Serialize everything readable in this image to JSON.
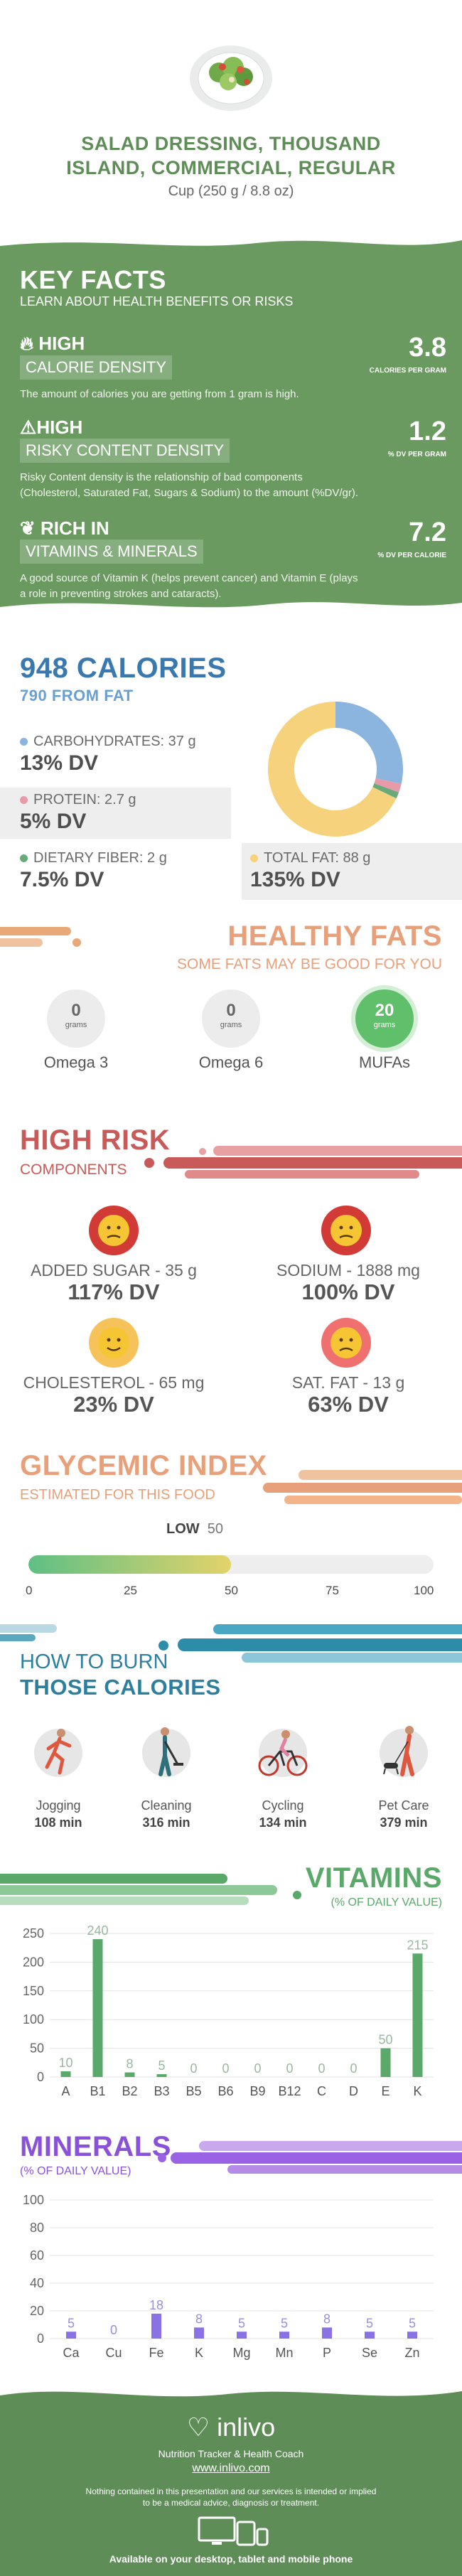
{
  "header": {
    "title_line1": "SALAD DRESSING, THOUSAND",
    "title_line2": "ISLAND, COMMERCIAL, REGULAR",
    "serving": "Cup (250 g / 8.8 oz)"
  },
  "key_facts": {
    "title": "KEY FACTS",
    "subtitle": "LEARN ABOUT HEALTH BENEFITS OR RISKS",
    "items": [
      {
        "level": "HIGH",
        "name": "CALORIE DENSITY",
        "value": "3.8",
        "unit": "CALORIES PER GRAM",
        "text": "The amount of calories you are getting from 1 gram is high."
      },
      {
        "level": "HIGH",
        "name": "RISKY CONTENT DENSITY",
        "value": "1.2",
        "unit": "% DV PER GRAM",
        "text1": "Risky Content density is the relationship of bad components",
        "text2": "(Cholesterol, Saturated Fat, Sugars & Sodium) to the amount (%DV/gr)."
      },
      {
        "level": "RICH  IN",
        "name": "VITAMINS & MINERALS",
        "value": "7.2",
        "unit": "% DV PER CALORIE",
        "text1": "A good source of Vitamin K (helps prevent cancer) and Vitamin E (plays",
        "text2": "a role in preventing strokes and cataracts)."
      }
    ]
  },
  "calories": {
    "title": "948 CALORIES",
    "subtitle": "790 FROM FAT",
    "carbs_label": "CARBOHYDRATES: 37 g",
    "carbs_dv": "13% DV",
    "protein_label": "PROTEIN: 2.7 g",
    "protein_dv": "5% DV",
    "fiber_label": "DIETARY FIBER: 2 g",
    "fiber_dv": "7.5% DV",
    "fat_label": "TOTAL FAT: 88 g",
    "fat_dv": "135% DV",
    "colors": {
      "carbs": "#8bb4df",
      "protein": "#e99aa8",
      "fiber": "#6aaa7a",
      "fat": "#f7d27c"
    }
  },
  "chart_data": [
    {
      "type": "pie",
      "categories": [
        "Carbohydrates",
        "Protein",
        "Dietary Fiber",
        "Total Fat"
      ],
      "values": [
        37,
        2.7,
        2,
        88
      ]
    },
    {
      "type": "bar",
      "categories": [
        "A",
        "B1",
        "B2",
        "B3",
        "B5",
        "B6",
        "B9",
        "B12",
        "C",
        "D",
        "E",
        "K"
      ],
      "values": [
        10,
        240,
        8,
        5,
        0,
        0,
        0,
        0,
        0,
        0,
        50,
        215
      ],
      "ylim": [
        0,
        250
      ],
      "yticks": [
        "0",
        "50",
        "100",
        "150",
        "200",
        "250"
      ]
    },
    {
      "type": "bar",
      "categories": [
        "Ca",
        "Cu",
        "Fe",
        "K",
        "Mg",
        "Mn",
        "P",
        "Se",
        "Zn"
      ],
      "values": [
        5,
        0,
        18,
        8,
        5,
        5,
        8,
        5,
        5
      ],
      "ylim": [
        0,
        100
      ],
      "yticks": [
        "0",
        "20",
        "40",
        "60",
        "80",
        "100"
      ]
    }
  ],
  "healthy_fats": {
    "title": "HEALTHY FATS",
    "subtitle": "SOME FATS MAY BE GOOD FOR YOU",
    "items": [
      {
        "value": "0",
        "unit": "grams",
        "name": "Omega 3"
      },
      {
        "value": "0",
        "unit": "grams",
        "name": "Omega 6"
      },
      {
        "value": "20",
        "unit": "grams",
        "name": "MUFAs"
      }
    ]
  },
  "high_risk": {
    "title": "HIGH RISK",
    "subtitle": "COMPONENTS",
    "items": [
      {
        "label": "ADDED SUGAR - 35 g",
        "dv": "117% DV"
      },
      {
        "label": "SODIUM - 1888 mg",
        "dv": "100% DV"
      },
      {
        "label": "CHOLESTEROL - 65 mg",
        "dv": "23% DV"
      },
      {
        "label": "SAT. FAT - 13 g",
        "dv": "63% DV"
      }
    ]
  },
  "glycemic": {
    "title": "GLYCEMIC INDEX",
    "subtitle": "ESTIMATED FOR THIS FOOD",
    "level": "LOW",
    "value": "50",
    "fraction": 0.5,
    "ticks": [
      "0",
      "25",
      "50",
      "75",
      "100"
    ]
  },
  "burn": {
    "title1": "HOW TO BURN",
    "title2": "THOSE CALORIES",
    "items": [
      {
        "name": "Jogging",
        "minutes": "108 min"
      },
      {
        "name": "Cleaning",
        "minutes": "316 min"
      },
      {
        "name": "Cycling",
        "minutes": "134 min"
      },
      {
        "name": "Pet Care",
        "minutes": "379 min"
      }
    ]
  },
  "vitamins": {
    "title": "VITAMINS",
    "subtitle": "(% OF DAILY VALUE)"
  },
  "minerals": {
    "title": "MINERALS",
    "subtitle": "(% OF DAILY VALUE)"
  },
  "footer": {
    "brand": "inlivo",
    "tagline": "Nutrition Tracker & Health Coach",
    "url": "www.inlivo.com",
    "disclaimer1": "Nothing contained in this presentation and our services is intended or implied",
    "disclaimer2": "to be a medical advice, diagnosis or treatment.",
    "available": "Available on your desktop, tablet and mobile phone"
  }
}
